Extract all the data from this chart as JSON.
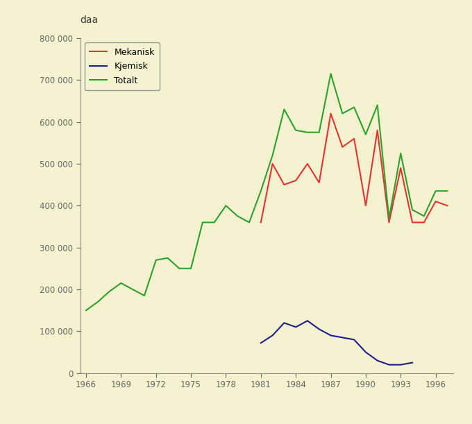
{
  "years": [
    1966,
    1967,
    1968,
    1969,
    1970,
    1971,
    1972,
    1973,
    1974,
    1975,
    1976,
    1977,
    1978,
    1979,
    1980,
    1981,
    1982,
    1983,
    1984,
    1985,
    1986,
    1987,
    1988,
    1989,
    1990,
    1991,
    1992,
    1993,
    1994,
    1995,
    1996,
    1997
  ],
  "mekanisk": [
    null,
    null,
    null,
    null,
    null,
    null,
    null,
    null,
    null,
    null,
    null,
    null,
    null,
    null,
    null,
    360000,
    500000,
    450000,
    460000,
    500000,
    455000,
    620000,
    540000,
    560000,
    400000,
    580000,
    360000,
    490000,
    360000,
    360000,
    410000,
    400000
  ],
  "kjemisk": [
    null,
    null,
    null,
    null,
    null,
    null,
    null,
    null,
    null,
    null,
    null,
    null,
    null,
    null,
    null,
    72000,
    90000,
    120000,
    110000,
    125000,
    105000,
    90000,
    85000,
    80000,
    50000,
    30000,
    20000,
    20000,
    25000,
    null,
    null,
    null
  ],
  "totalt": [
    150000,
    170000,
    195000,
    215000,
    200000,
    185000,
    270000,
    275000,
    250000,
    250000,
    360000,
    360000,
    400000,
    375000,
    360000,
    435000,
    520000,
    630000,
    580000,
    575000,
    575000,
    715000,
    620000,
    635000,
    570000,
    640000,
    370000,
    525000,
    390000,
    375000,
    435000,
    435000
  ],
  "mekanisk_color": "#e83030",
  "kjemisk_color": "#1c1c8c",
  "totalt_color": "#2ca02c",
  "background_color": "#f5f2d0",
  "plot_bg_color": "#f5f2d0",
  "ylabel": "daa",
  "ylim": [
    0,
    800000
  ],
  "yticks": [
    0,
    100000,
    200000,
    300000,
    400000,
    500000,
    600000,
    700000,
    800000
  ],
  "xticks": [
    1966,
    1969,
    1972,
    1975,
    1978,
    1981,
    1984,
    1987,
    1990,
    1993,
    1996
  ],
  "legend_labels": [
    "Mekanisk",
    "Kjemisk",
    "Totalt"
  ],
  "linewidth": 1.5
}
